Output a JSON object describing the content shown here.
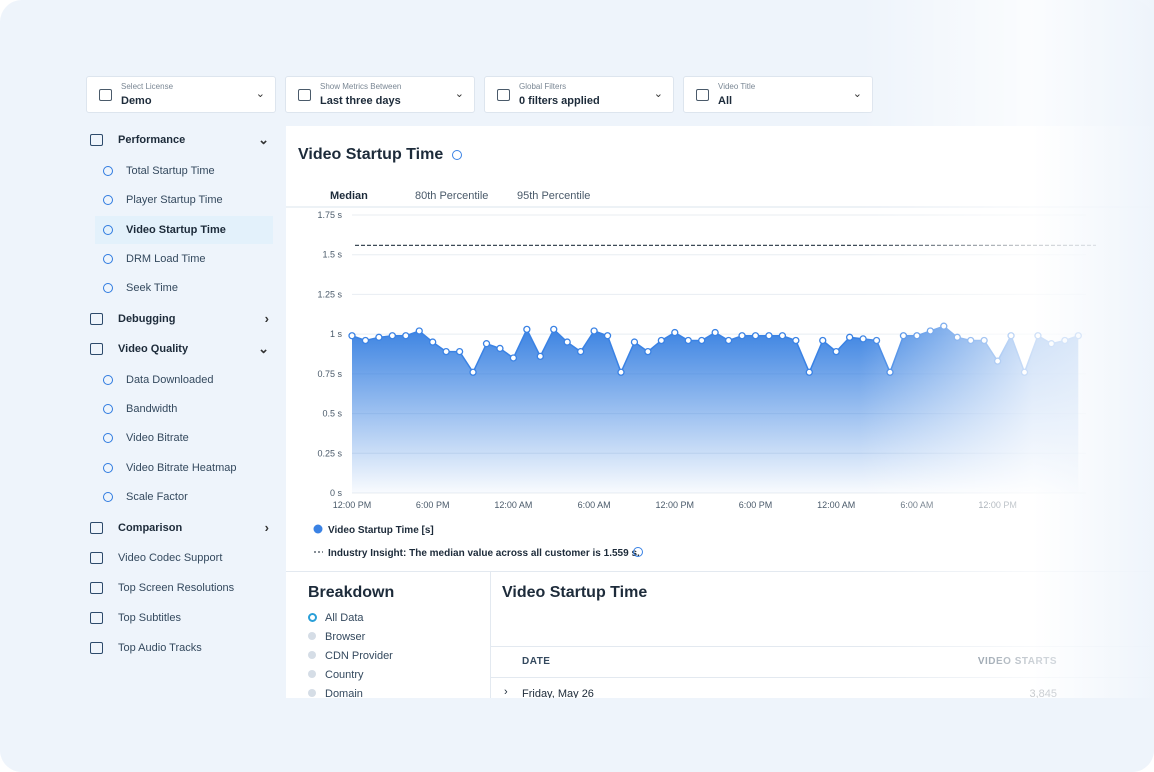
{
  "filters": [
    {
      "label": "Select License",
      "value": "Demo"
    },
    {
      "label": "Show Metrics Between",
      "value": "Last three days"
    },
    {
      "label": "Global Filters",
      "value": "0 filters applied"
    },
    {
      "label": "Video Title",
      "value": "All"
    }
  ],
  "sidebar": [
    {
      "label": "Performance",
      "children": [
        "Total Startup Time",
        "Player Startup Time",
        "Video Startup Time",
        "DRM Load Time",
        "Seek Time"
      ]
    },
    {
      "label": "Debugging",
      "children": []
    },
    {
      "label": "Video Quality",
      "children": [
        "Data Downloaded",
        "Bandwidth",
        "Video Bitrate",
        "Video Bitrate Heatmap",
        "Scale Factor"
      ]
    },
    {
      "label": "Comparison",
      "children": []
    },
    {
      "label": "Video Codec Support",
      "children": []
    },
    {
      "label": "Top Screen Resolutions",
      "children": []
    },
    {
      "label": "Top Subtitles",
      "children": []
    },
    {
      "label": "Top Audio Tracks",
      "children": []
    }
  ],
  "tabs": [
    "Median",
    "80th Percentile",
    "95th Percentile"
  ],
  "chart_data": {
    "type": "area",
    "title": "Video Startup Time",
    "categories": [
      "12:00 PM",
      null,
      null,
      null,
      null,
      null,
      "6:00 PM",
      null,
      null,
      null,
      null,
      null,
      "12:00 AM",
      null,
      null,
      null,
      null,
      null,
      "6:00 AM",
      null,
      null,
      null,
      null,
      null,
      "12:00 PM",
      null,
      null,
      null,
      null,
      null,
      "6:00 PM",
      null,
      null,
      null,
      null,
      null,
      "12:00 AM",
      null,
      null,
      null,
      null,
      null,
      "6:00 AM",
      null,
      null,
      null,
      null,
      null,
      "12:00 PM",
      null,
      null,
      null,
      null,
      null,
      null
    ],
    "series": [
      {
        "name": "Video Startup Time [s]",
        "color": "#3a82e4",
        "values": [
          0.99,
          0.96,
          0.98,
          0.99,
          0.99,
          1.02,
          0.95,
          0.89,
          0.89,
          0.76,
          0.94,
          0.91,
          0.85,
          1.03,
          0.86,
          1.03,
          0.95,
          0.89,
          1.02,
          0.99,
          0.76,
          0.95,
          0.89,
          0.96,
          1.01,
          0.96,
          0.96,
          1.01,
          0.96,
          0.99,
          0.99,
          0.99,
          0.99,
          0.96,
          0.76,
          0.96,
          0.89,
          0.98,
          0.97,
          0.96,
          0.76,
          0.99,
          0.99,
          1.02,
          1.05,
          0.98,
          0.96,
          0.96,
          0.83,
          0.99,
          0.76,
          0.99,
          0.94,
          0.96,
          0.99
        ]
      }
    ],
    "ylim": [
      0,
      1.75
    ],
    "yticks": [
      {
        "value": 0,
        "label": "0 s"
      },
      {
        "value": 0.25,
        "label": "0.25 s"
      },
      {
        "value": 0.5,
        "label": "0.5 s"
      },
      {
        "value": 0.75,
        "label": "0.75 s"
      },
      {
        "value": 1,
        "label": "1 s"
      },
      {
        "value": 1.25,
        "label": "1.25 s"
      },
      {
        "value": 1.5,
        "label": "1.5 s"
      },
      {
        "value": 1.75,
        "label": "1.75 s"
      }
    ],
    "grid": true,
    "reference_line": 1.559,
    "annotation": "Industry Insight: The median value across all customer is 1.559 s."
  },
  "breakdown": {
    "title": "Breakdown",
    "options": [
      "All Data",
      "Browser",
      "CDN Provider",
      "Country",
      "Domain"
    ]
  },
  "table": {
    "title": "Video Startup Time",
    "columns": [
      "DATE",
      "VIDEO STARTS"
    ],
    "rows": [
      [
        "Friday, May 26",
        "3,845"
      ]
    ]
  }
}
